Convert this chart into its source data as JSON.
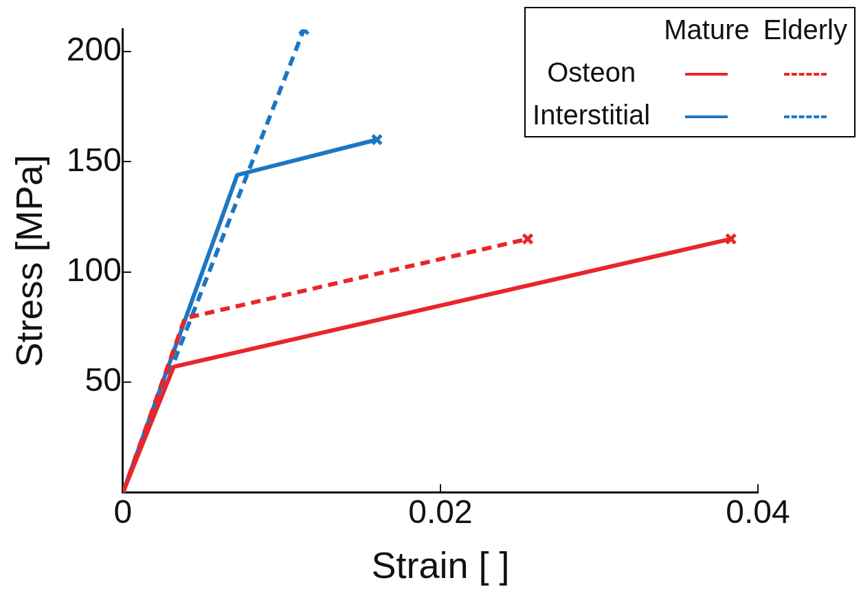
{
  "chart_data": {
    "type": "line",
    "xlabel": "Strain [ ]",
    "ylabel": "Stress [MPa]",
    "xlim": [
      0,
      0.04
    ],
    "xticks": [
      0,
      0.02,
      0.04
    ],
    "ylim": [
      0,
      210
    ],
    "yticks": [
      50,
      100,
      150,
      200
    ],
    "grid": false,
    "annotations": [
      "Mature",
      "Elderly",
      "Osteon",
      "Interstitial"
    ],
    "series": [
      {
        "color": "#e8262b",
        "line_style": "solid",
        "x": [
          0,
          0.0032,
          0.0383
        ],
        "values": [
          0,
          57,
          115
        ]
      },
      {
        "color": "#e8262b",
        "line_style": "dashed",
        "x": [
          0,
          0.0039,
          0.0255
        ],
        "values": [
          0,
          79,
          115
        ]
      },
      {
        "color": "#1c77c3",
        "line_style": "solid",
        "x": [
          0,
          0.0072,
          0.016
        ],
        "values": [
          0,
          144,
          160
        ]
      },
      {
        "color": "#1c77c3",
        "line_style": "dashed",
        "x": [
          0,
          0.0114
        ],
        "values": [
          0,
          210
        ]
      },
      {
        "type": "scatter",
        "marker": "cross",
        "color": "#e8262b",
        "x": [
          0.0383,
          0.0255
        ],
        "values": [
          115,
          115
        ]
      },
      {
        "type": "scatter",
        "marker": "cross",
        "color": "#1c77c3",
        "x": [
          0.016,
          0.0114
        ],
        "values": [
          160,
          210
        ]
      }
    ]
  }
}
